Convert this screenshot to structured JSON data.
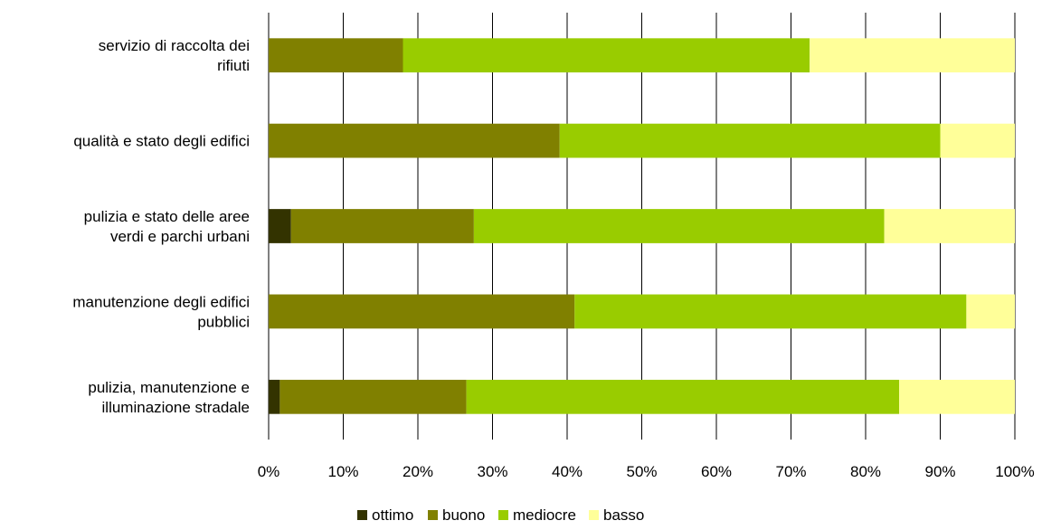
{
  "chart_data": {
    "type": "bar",
    "orientation": "horizontal",
    "stacked": "percent",
    "categories": [
      [
        "servizio di raccolta dei",
        "rifiuti"
      ],
      [
        "qualità e stato degli edifici"
      ],
      [
        "pulizia e stato delle aree",
        "verdi e parchi urbani"
      ],
      [
        "manutenzione degli edifici",
        "pubblici"
      ],
      [
        "pulizia, manutenzione e",
        "illuminazione stradale"
      ]
    ],
    "series": [
      {
        "name": "ottimo",
        "color": "#333300",
        "values": [
          0,
          0,
          3,
          0,
          1.5
        ]
      },
      {
        "name": "buono",
        "color": "#808000",
        "values": [
          18,
          39,
          24.5,
          41,
          25
        ]
      },
      {
        "name": "mediocre",
        "color": "#99cc00",
        "values": [
          54.5,
          51,
          55,
          52.5,
          58
        ]
      },
      {
        "name": "basso",
        "color": "#ffff99",
        "values": [
          27.5,
          10,
          17.5,
          6.5,
          15.5
        ]
      }
    ],
    "xlim": [
      0,
      100
    ],
    "x_ticks": [
      "0%",
      "10%",
      "20%",
      "30%",
      "40%",
      "50%",
      "60%",
      "70%",
      "80%",
      "90%",
      "100%"
    ],
    "grid": "vertical",
    "legend_position": "bottom"
  }
}
